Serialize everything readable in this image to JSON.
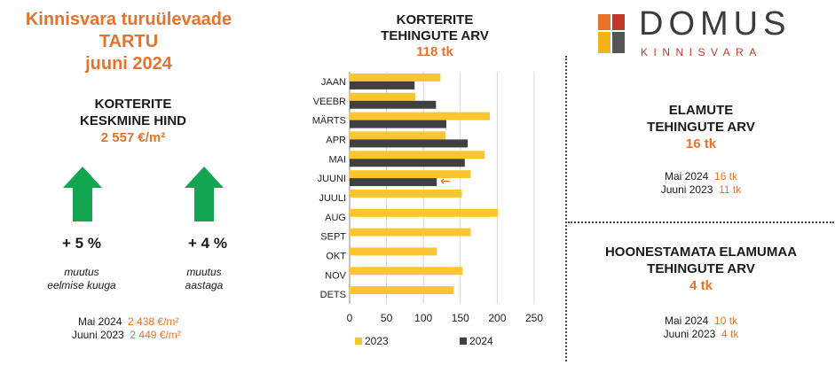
{
  "header": {
    "title_line1": "Kinnisvara turuülevaade",
    "title_line2": "TARTU",
    "title_line3": "juuni 2024"
  },
  "apartment_price": {
    "label_line1": "KORTERITE",
    "label_line2": "KESKMINE HIND",
    "value": "2 557 €/m²",
    "monthly_change": {
      "value": "+ 5 %",
      "caption_line1": "muutus",
      "caption_line2": "eelmise kuuga",
      "direction": "up"
    },
    "yearly_change": {
      "value": "+ 4 %",
      "caption_line1": "muutus",
      "caption_line2": "aastaga",
      "direction": "up"
    },
    "comparisons": [
      {
        "label": "Mai 2024",
        "value": "2 438 €/m²"
      },
      {
        "label": "Juuni 2023",
        "value": "2 449 €/m²"
      }
    ],
    "arrow_color": "#12a650"
  },
  "apartment_transactions": {
    "label_line1": "KORTERITE",
    "label_line2": "TEHINGUTE ARV",
    "value": "118 tk"
  },
  "houses": {
    "label_line1": "ELAMUTE",
    "label_line2": "TEHINGUTE ARV",
    "value": "16 tk",
    "comparisons": [
      {
        "label": "Mai 2024",
        "value": "16 tk"
      },
      {
        "label": "Juuni 2023",
        "value": "11 tk"
      }
    ]
  },
  "land": {
    "label_line1": "HOONESTAMATA ELAMUMAA",
    "label_line2": "TEHINGUTE ARV",
    "value": "4 tk",
    "comparisons": [
      {
        "label": "Mai 2024",
        "value": "10 tk"
      },
      {
        "label": "Juuni 2023",
        "value": "4 tk"
      }
    ]
  },
  "logo": {
    "word": "DOMUS",
    "sub": "KINNISVARA",
    "colors": [
      "#e8722a",
      "#c0392b",
      "#f2b31a",
      "#555555"
    ]
  },
  "colors": {
    "accent": "#e8722a",
    "bar_2023": "#fbc531",
    "bar_2024": "#404040"
  },
  "chart_data": {
    "type": "bar",
    "orientation": "horizontal",
    "categories": [
      "JAAN",
      "VEEBR",
      "MÄRTS",
      "APR",
      "MAI",
      "JUUNI",
      "JUULI",
      "AUG",
      "SEPT",
      "OKT",
      "NOV",
      "DETS"
    ],
    "series": [
      {
        "name": "2023",
        "color": "#fbc531",
        "values": [
          123,
          89,
          190,
          130,
          183,
          164,
          152,
          201,
          164,
          118,
          153,
          141
        ]
      },
      {
        "name": "2024",
        "color": "#404040",
        "values": [
          88,
          117,
          131,
          160,
          156,
          118,
          null,
          null,
          null,
          null,
          null,
          null
        ]
      }
    ],
    "xlim": [
      0,
      250
    ],
    "xticks": [
      0,
      50,
      100,
      150,
      200,
      250
    ],
    "grid": true,
    "legend": "bottom",
    "highlight": {
      "category": "JUUNI",
      "marker": "←"
    }
  }
}
